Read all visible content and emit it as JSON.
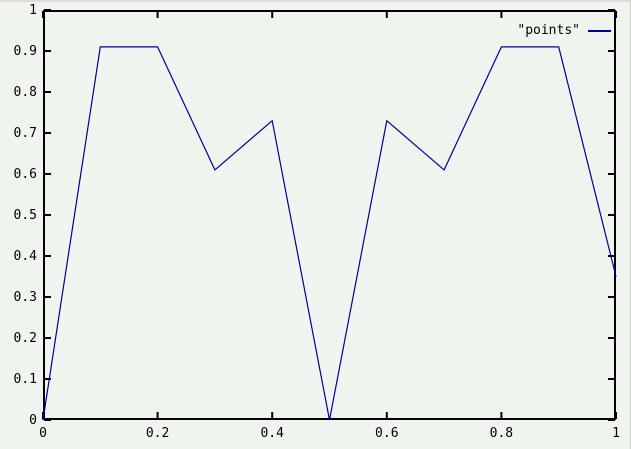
{
  "chart_data": {
    "type": "line",
    "x": [
      0,
      0.1,
      0.2,
      0.3,
      0.4,
      0.5,
      0.6,
      0.7,
      0.8,
      0.9,
      1.0
    ],
    "series": [
      {
        "name": "\"points\"",
        "values": [
          0,
          0.91,
          0.91,
          0.61,
          0.73,
          0,
          0.73,
          0.61,
          0.91,
          0.91,
          0.35
        ]
      }
    ],
    "title": "",
    "xlabel": "",
    "ylabel": "",
    "xlim": [
      0,
      1
    ],
    "ylim": [
      0,
      1
    ],
    "x_ticks": [
      0,
      0.2,
      0.4,
      0.6,
      0.8,
      1
    ],
    "x_tick_labels": [
      "0",
      "0.2",
      "0.4",
      "0.6",
      "0.8",
      "1"
    ],
    "y_ticks": [
      0,
      0.1,
      0.2,
      0.3,
      0.4,
      0.5,
      0.6,
      0.7,
      0.8,
      0.9,
      1
    ],
    "y_tick_labels": [
      "0",
      "0.1",
      "0.2",
      "0.3",
      "0.4",
      "0.5",
      "0.6",
      "0.7",
      "0.8",
      "0.9",
      "1"
    ],
    "grid": false,
    "legend_position": "top-right",
    "legend_entries": [
      "\"points\""
    ]
  },
  "legend": {
    "series_label": "\"points\""
  },
  "colors": {
    "background": "#f0f4ee",
    "plot_border": "#000000",
    "tick_label": "#000000",
    "line": "#000099",
    "top_edge": "#e2dada"
  }
}
